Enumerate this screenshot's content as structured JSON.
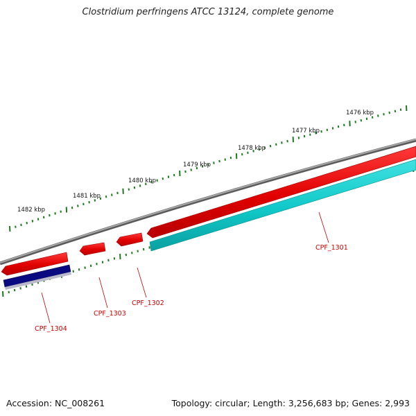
{
  "title": "Clostridium perfringens ATCC 13124, complete genome",
  "footer": {
    "accession": "Accession: NC_008261",
    "summary": "Topology: circular; Length: 3,256,683 bp; Genes: 2,993"
  },
  "scale_labels": [
    "1476 kbp",
    "1477 kbp",
    "1478 kbp",
    "1479 kbp",
    "1480 kbp",
    "1481 kbp",
    "1482 kbp"
  ],
  "gene_labels": [
    "CPF_1301",
    "CPF_1302",
    "CPF_1303",
    "CPF_1304"
  ],
  "colors": {
    "backbone": "#777777",
    "forward_gene": "#e00000",
    "reverse_gene": "#10c8c8",
    "other_feature": "#0a0a80",
    "ticks": "#1e7a1e",
    "gene_label": "#cc0000"
  }
}
